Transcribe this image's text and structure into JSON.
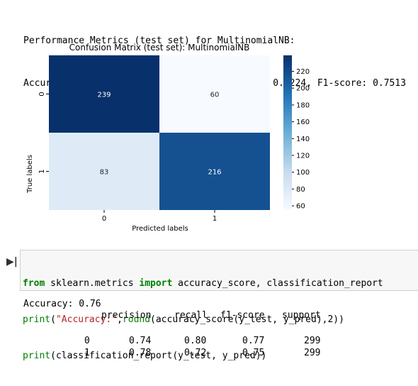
{
  "perf": {
    "line1": "Performance Metrics (test set) for MultinomialNB:",
    "line2": "Accuracy: 0.7609, Precision: 0.7826, Recall: 0.7224, F1-score: 0.7513"
  },
  "chart_data": {
    "type": "heatmap",
    "title": "Confusion Matrix (test set): MultinomialNB",
    "xlabel": "Predicted labels",
    "ylabel": "True labels",
    "x_categories": [
      "0",
      "1"
    ],
    "y_categories": [
      "0",
      "1"
    ],
    "values": [
      [
        239,
        60
      ],
      [
        83,
        216
      ]
    ],
    "colormap": "Blues",
    "colorbar_ticks": [
      "60",
      "80",
      "100",
      "120",
      "140",
      "160",
      "180",
      "200",
      "220"
    ],
    "colorbar_range": [
      60,
      239
    ]
  },
  "code": {
    "gutter": "▶|",
    "line1": {
      "kw1": "from",
      "mid": " sklearn.metrics ",
      "kw2": "import",
      "rest": " accuracy_score, classification_report"
    },
    "line2": {
      "fn": "print",
      "p1": "(",
      "str": "\"Accuracy:\"",
      "p2": ",",
      "fn2": "round",
      "rest": "(accuracy_score(y_test, y_pred),2))"
    },
    "line3": {
      "fn": "print",
      "rest": "(classification_report(y_test, y_pred))"
    }
  },
  "output": {
    "accuracy_line": "Accuracy: 0.76",
    "headers": [
      "precision",
      "recall",
      "f1-score",
      "support"
    ],
    "rows": [
      {
        "label": "0",
        "precision": "0.74",
        "recall": "0.80",
        "f1": "0.77",
        "support": "299"
      },
      {
        "label": "1",
        "precision": "0.78",
        "recall": "0.72",
        "f1": "0.75",
        "support": "299"
      }
    ]
  },
  "colors": {
    "dark_blue": "#08306b",
    "mid_blue": "#0b559f",
    "light_blue": "#dce9f6",
    "palest_blue": "#f7fbff"
  }
}
